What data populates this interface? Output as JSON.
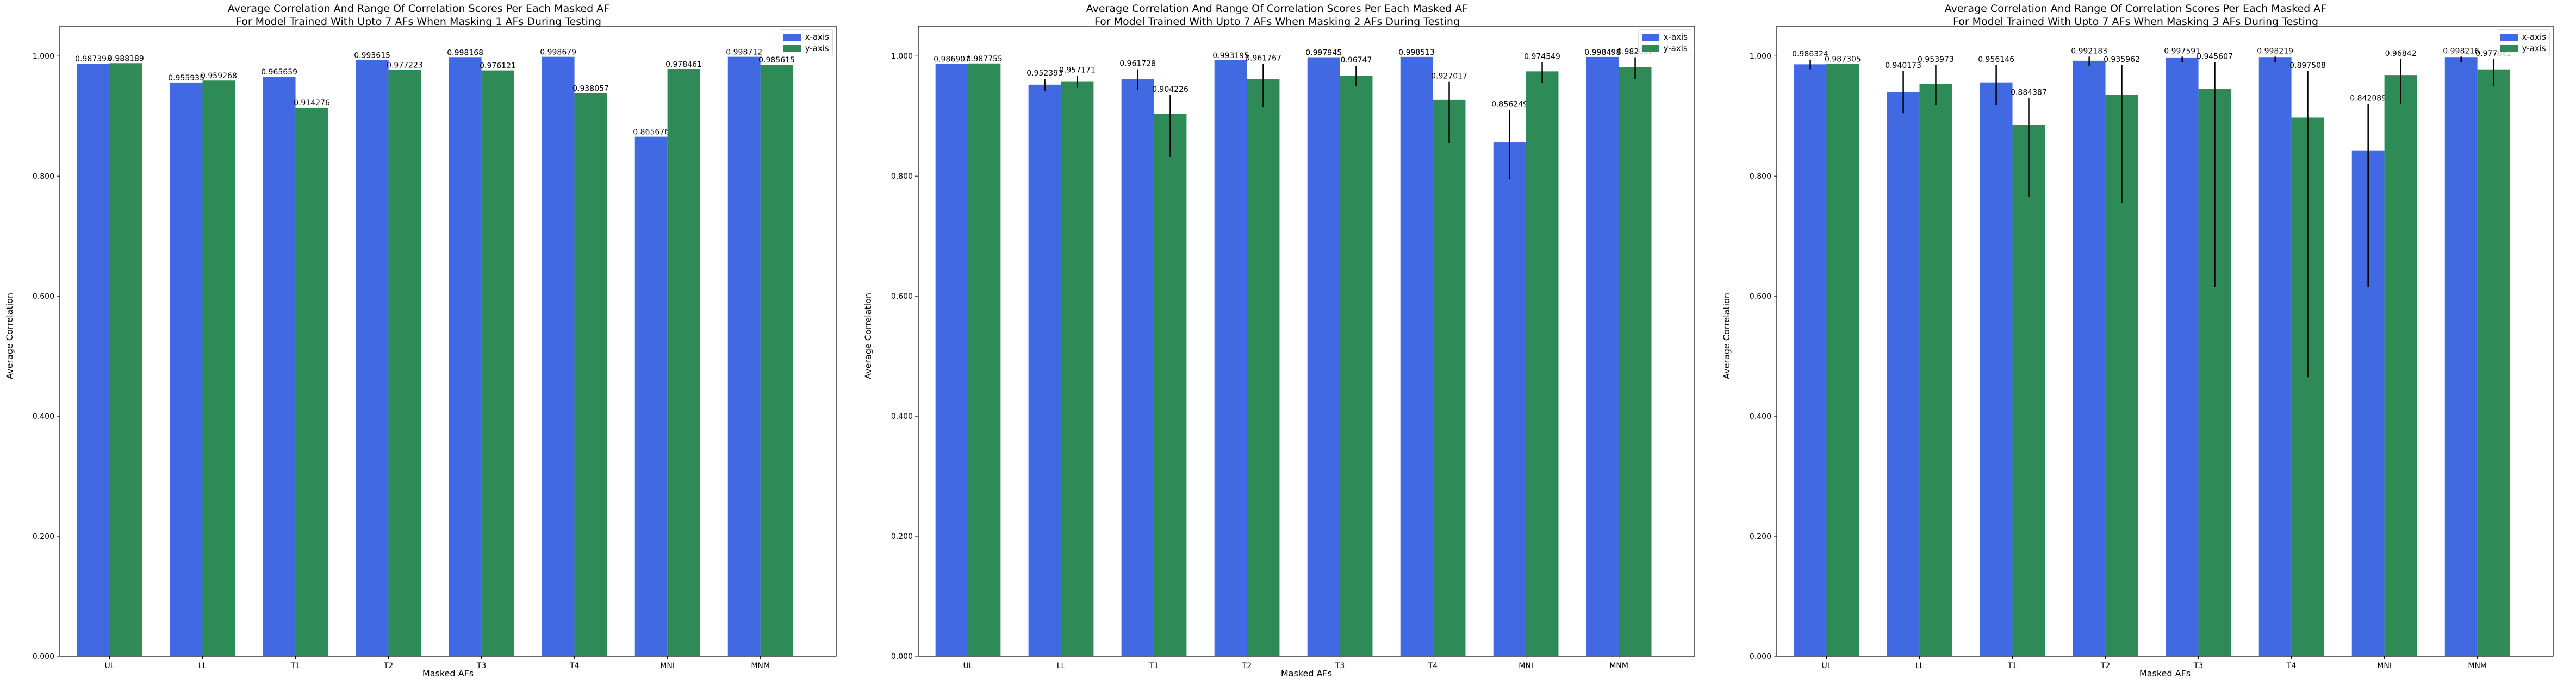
{
  "chart_data": [
    {
      "type": "bar",
      "title_line1": "Average Correlation And Range Of Correlation Scores Per Each Masked AF",
      "title_line2": "For Model Trained With Upto 7 AFs When Masking 1 AFs During Testing",
      "xlabel": "Masked AFs",
      "ylabel": "Average Correlation",
      "ylim": [
        0,
        1.05
      ],
      "yticks": [
        "0.000",
        "0.200",
        "0.400",
        "0.600",
        "0.800",
        "1.000"
      ],
      "categories": [
        "UL",
        "LL",
        "T1",
        "T2",
        "T3",
        "T4",
        "MNI",
        "MNM"
      ],
      "legend_position": "top-right",
      "series": [
        {
          "name": "x-axis",
          "color": "#4169E1",
          "values": [
            0.987393,
            0.955935,
            0.965659,
            0.993615,
            0.998168,
            0.998679,
            0.865676,
            0.998712
          ],
          "labels": [
            "0.987393",
            "0.955935",
            "0.965659",
            "0.993615",
            "0.998168",
            "0.998679",
            "0.865676",
            "0.998712"
          ],
          "ranges": [
            null,
            null,
            null,
            null,
            null,
            null,
            null,
            null
          ]
        },
        {
          "name": "y-axis",
          "color": "#2E8B57",
          "values": [
            0.988189,
            0.959268,
            0.914276,
            0.977223,
            0.976121,
            0.938057,
            0.978461,
            0.985615
          ],
          "labels": [
            "0.988189",
            "0.959268",
            "0.914276",
            "0.977223",
            "0.976121",
            "0.938057",
            "0.978461",
            "0.985615"
          ],
          "ranges": [
            null,
            null,
            null,
            null,
            null,
            null,
            null,
            null
          ]
        }
      ]
    },
    {
      "type": "bar",
      "title_line1": "Average Correlation And Range Of Correlation Scores Per Each Masked AF",
      "title_line2": "For Model Trained With Upto 7 AFs When Masking 2 AFs During Testing",
      "xlabel": "Masked AFs",
      "ylabel": "Average Correlation",
      "ylim": [
        0,
        1.05
      ],
      "yticks": [
        "0.000",
        "0.200",
        "0.400",
        "0.600",
        "0.800",
        "1.000"
      ],
      "categories": [
        "UL",
        "LL",
        "T1",
        "T2",
        "T3",
        "T4",
        "MNI",
        "MNM"
      ],
      "legend_position": "top-right",
      "series": [
        {
          "name": "x-axis",
          "color": "#4169E1",
          "values": [
            0.986907,
            0.952393,
            0.961728,
            0.993195,
            0.997945,
            0.998513,
            0.856249,
            0.998498
          ],
          "labels": [
            "0.986907",
            "0.952393",
            "0.961728",
            "0.993195",
            "0.997945",
            "0.998513",
            "0.856249",
            "0.998498"
          ],
          "ranges": [
            null,
            [
              0.942,
              0.962
            ],
            [
              0.944,
              0.978
            ],
            null,
            null,
            null,
            [
              0.795,
              0.91
            ],
            null
          ]
        },
        {
          "name": "y-axis",
          "color": "#2E8B57",
          "values": [
            0.987755,
            0.957171,
            0.904226,
            0.961767,
            0.96747,
            0.927017,
            0.974549,
            0.982052
          ],
          "labels": [
            "0.987755",
            "0.957171",
            "0.904226",
            "0.961767",
            "0.96747",
            "0.927017",
            "0.974549",
            "0.982052"
          ],
          "ranges": [
            null,
            [
              0.947,
              0.967
            ],
            [
              0.832,
              0.935
            ],
            [
              0.915,
              0.987
            ],
            [
              0.95,
              0.984
            ],
            [
              0.855,
              0.957
            ],
            [
              0.955,
              0.99
            ],
            [
              0.962,
              0.998
            ]
          ]
        }
      ]
    },
    {
      "type": "bar",
      "title_line1": "Average Correlation And Range Of Correlation Scores Per Each Masked AF",
      "title_line2": "For Model Trained With Upto 7 AFs When Masking 3 AFs During Testing",
      "xlabel": "Masked AFs",
      "ylabel": "Average Correlation",
      "ylim": [
        0,
        1.05
      ],
      "yticks": [
        "0.000",
        "0.200",
        "0.400",
        "0.600",
        "0.800",
        "1.000"
      ],
      "categories": [
        "UL",
        "LL",
        "T1",
        "T2",
        "T3",
        "T4",
        "MNI",
        "MNM"
      ],
      "legend_position": "top-right",
      "series": [
        {
          "name": "x-axis",
          "color": "#4169E1",
          "values": [
            0.986324,
            0.940173,
            0.956146,
            0.992183,
            0.997591,
            0.998219,
            0.842089,
            0.998216
          ],
          "labels": [
            "0.986324",
            "0.940173",
            "0.956146",
            "0.992183",
            "0.997591",
            "0.998219",
            "0.842089",
            "0.998216"
          ],
          "ranges": [
            [
              0.978,
              0.994
            ],
            [
              0.905,
              0.975
            ],
            [
              0.918,
              0.985
            ],
            [
              0.984,
              0.999
            ],
            [
              0.99,
              0.999
            ],
            [
              0.99,
              0.999
            ],
            [
              0.615,
              0.92
            ],
            [
              0.99,
              0.999
            ]
          ]
        },
        {
          "name": "y-axis",
          "color": "#2E8B57",
          "values": [
            0.987305,
            0.953973,
            0.884387,
            0.935962,
            0.945607,
            0.897508,
            0.96842,
            0.977862
          ],
          "labels": [
            "0.987305",
            "0.953973",
            "0.884387",
            "0.935962",
            "0.945607",
            "0.897508",
            "0.96842",
            "0.977862"
          ],
          "ranges": [
            null,
            [
              0.918,
              0.985
            ],
            [
              0.765,
              0.93
            ],
            [
              0.755,
              0.985
            ],
            [
              0.615,
              0.99
            ],
            [
              0.465,
              0.975
            ],
            [
              0.92,
              0.995
            ],
            [
              0.95,
              0.995
            ]
          ]
        }
      ]
    }
  ]
}
